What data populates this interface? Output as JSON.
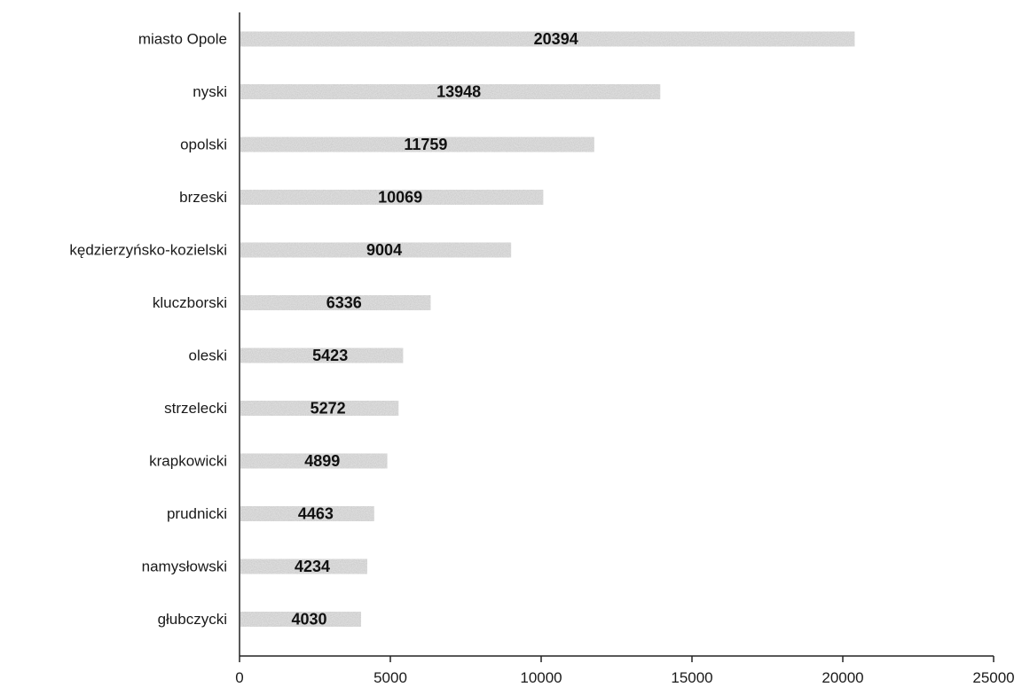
{
  "chart_data": {
    "type": "bar",
    "orientation": "horizontal",
    "title": "",
    "xlabel": "",
    "ylabel": "",
    "categories": [
      "miasto Opole",
      "nyski",
      "opolski",
      "brzeski",
      "kędzierzyńsko-kozielski",
      "kluczborski",
      "oleski",
      "strzelecki",
      "krapkowicki",
      "prudnicki",
      "namysłowski",
      "głubczycki"
    ],
    "values": [
      20394,
      13948,
      11759,
      10069,
      9004,
      6336,
      5423,
      5272,
      4899,
      4463,
      4234,
      4030
    ],
    "xlim": [
      0,
      25000
    ],
    "xticks": [
      0,
      5000,
      10000,
      15000,
      20000,
      25000
    ],
    "grid": false,
    "legend": "none",
    "data_labels": true,
    "colors": {
      "bar": "#c4c4c4",
      "axis": "#222222",
      "text": "#1a1a1a"
    }
  }
}
